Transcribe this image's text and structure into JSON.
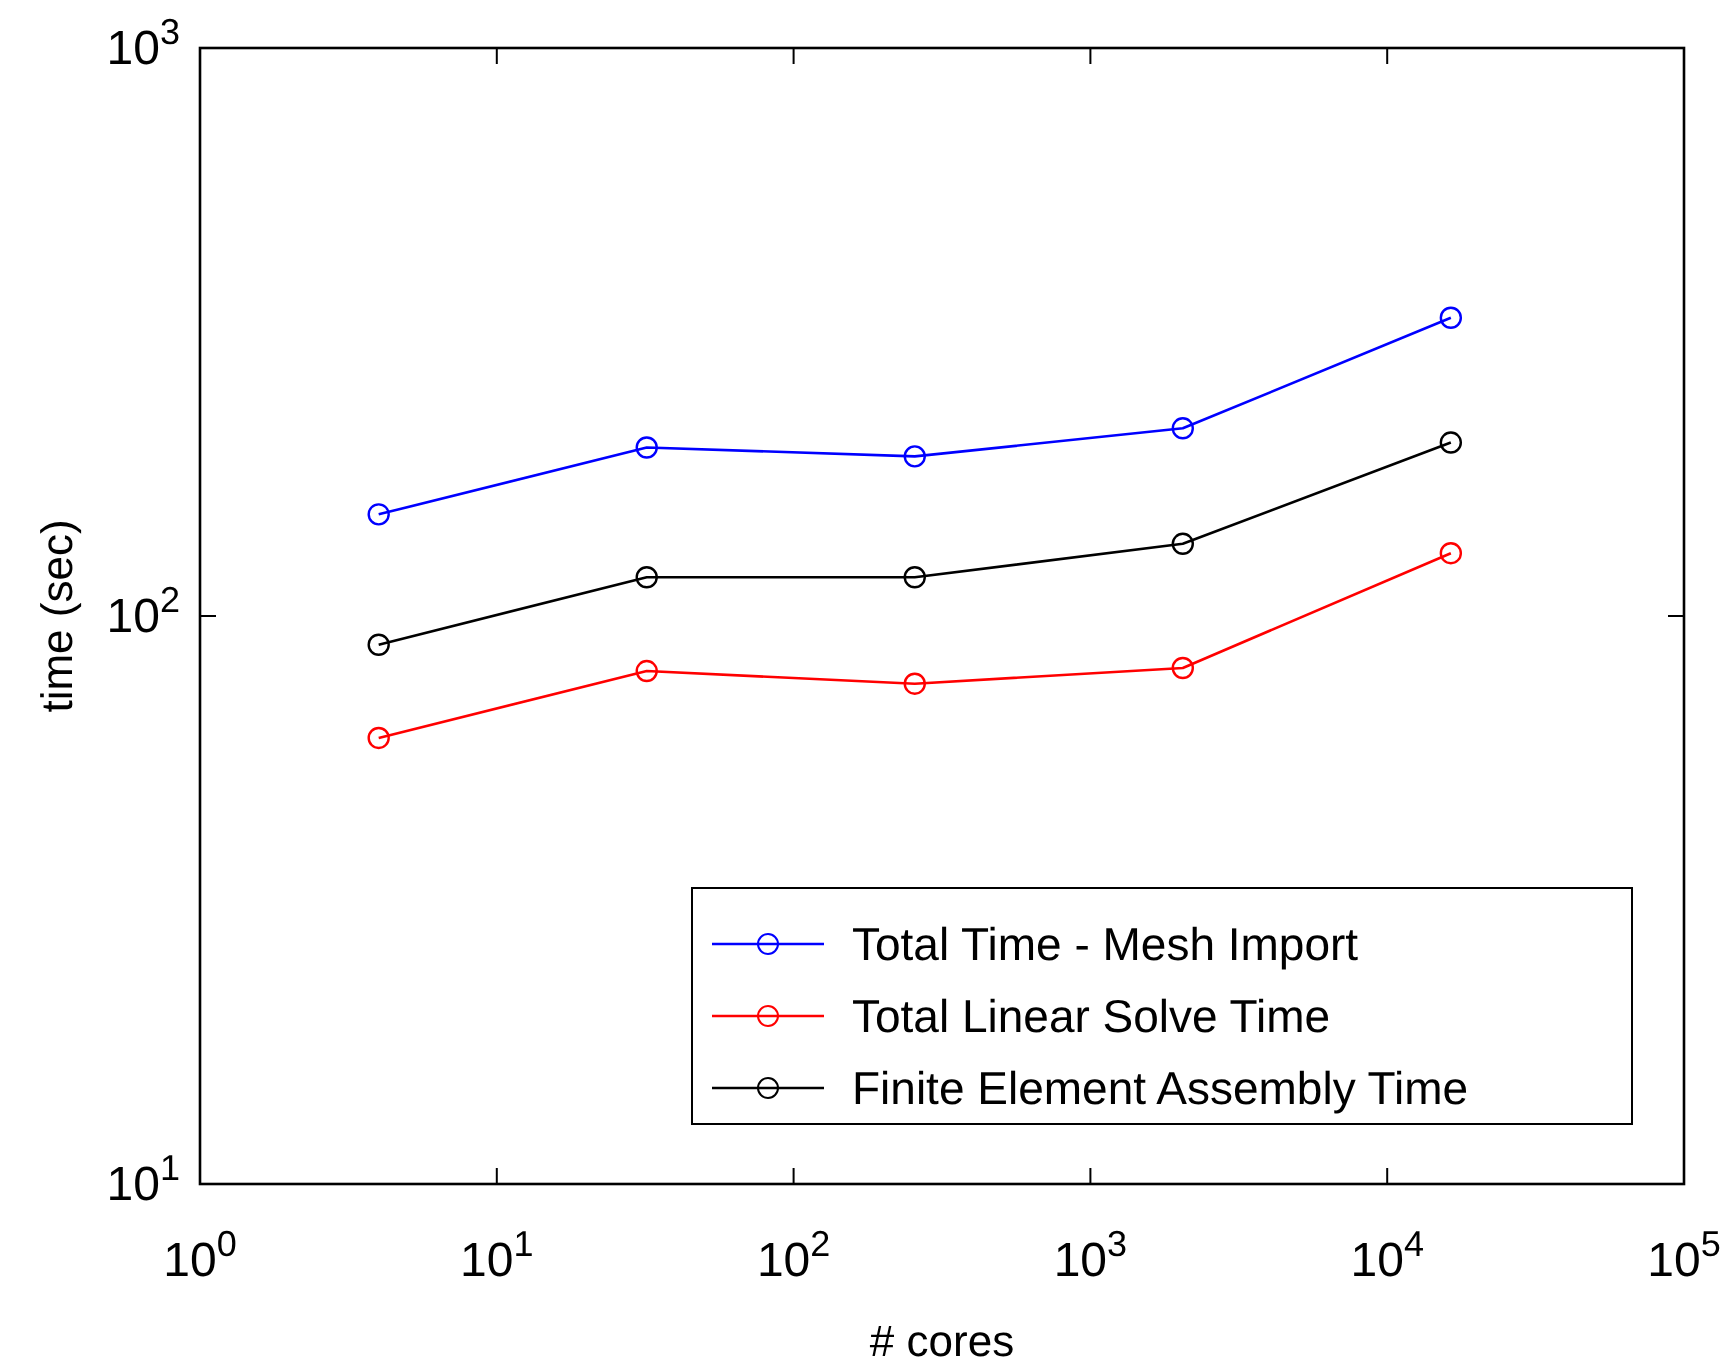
{
  "chart_data": {
    "type": "line",
    "xlabel": "# cores",
    "ylabel": "time (sec)",
    "log": "xy",
    "marker": "circle",
    "legend": "bottom right",
    "grid": false,
    "x": [
      4,
      32,
      256,
      2048,
      16384
    ],
    "xlim": [
      1,
      100000
    ],
    "xticks": [
      {
        "value": 1,
        "label": "10$^{0}$"
      },
      {
        "value": 10,
        "label": "10$^{1}$"
      },
      {
        "value": 100,
        "label": "10$^{2}$"
      },
      {
        "value": 1000,
        "label": "10$^{3}$"
      },
      {
        "value": 10000,
        "label": "10$^{4}$"
      },
      {
        "value": 100000,
        "label": "10$^{5}$"
      }
    ],
    "ylim": [
      10,
      1000
    ],
    "yticks": [
      {
        "value": 10,
        "label": "10$^{1}$"
      },
      {
        "value": 100,
        "label": "10$^{2}$"
      },
      {
        "value": 1000,
        "label": "10$^{3}$"
      }
    ],
    "series": [
      {
        "name": "Total Time - Mesh Import",
        "color": "#0000ff",
        "values": [
          151,
          198,
          191,
          214,
          335
        ]
      },
      {
        "name": "Total Linear Solve Time",
        "color": "#ff0000",
        "values": [
          61,
          80,
          76,
          81,
          129
        ]
      },
      {
        "name": "Finite Element Assembly Time",
        "color": "#000000",
        "values": [
          89,
          117,
          117,
          134,
          202
        ]
      }
    ]
  }
}
